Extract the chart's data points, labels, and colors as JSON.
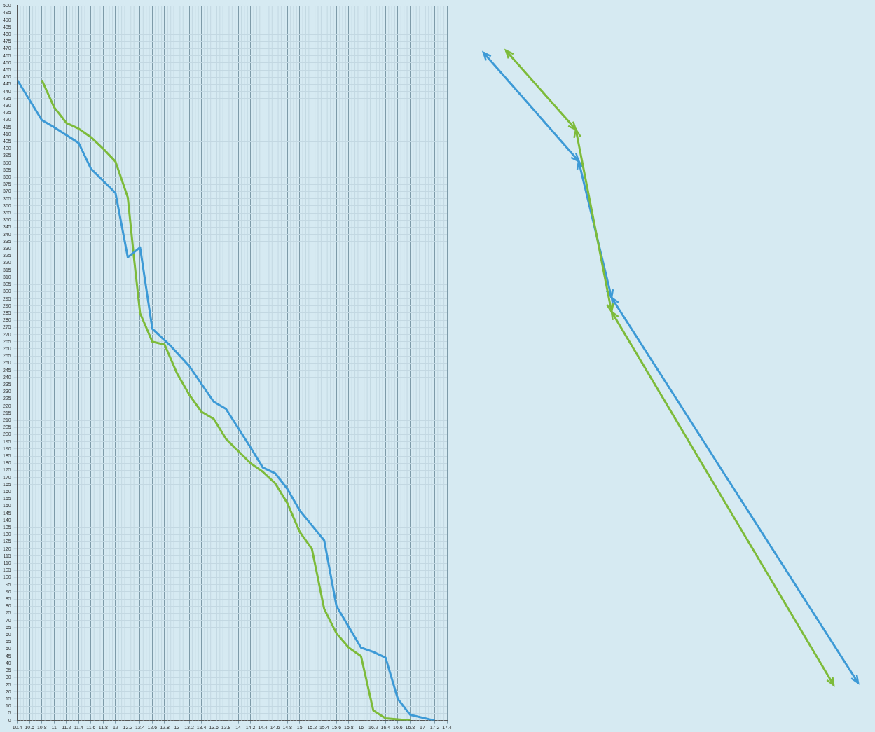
{
  "chart_data": {
    "type": "line",
    "grid": true,
    "xlim": [
      10.4,
      17.4
    ],
    "xticks": [
      10.4,
      10.6,
      10.8,
      11,
      11.2,
      11.4,
      11.6,
      11.8,
      12,
      12.2,
      12.4,
      12.6,
      12.8,
      13,
      13.2,
      13.4,
      13.6,
      13.8,
      14,
      14.2,
      14.4,
      14.6,
      14.8,
      15,
      15.2,
      15.4,
      15.6,
      15.8,
      16,
      16.2,
      16.4,
      16.6,
      16.8,
      17,
      17.2,
      17.4
    ],
    "ylim": [
      0,
      500
    ],
    "yticks": [
      0,
      5,
      10,
      15,
      20,
      25,
      30,
      35,
      40,
      45,
      50,
      55,
      60,
      65,
      70,
      75,
      80,
      85,
      90,
      95,
      100,
      105,
      110,
      115,
      120,
      125,
      130,
      135,
      140,
      145,
      150,
      155,
      160,
      165,
      170,
      175,
      180,
      185,
      190,
      195,
      200,
      205,
      210,
      215,
      220,
      225,
      230,
      235,
      240,
      245,
      250,
      255,
      260,
      265,
      270,
      275,
      280,
      285,
      290,
      295,
      300,
      305,
      310,
      315,
      320,
      325,
      330,
      335,
      340,
      345,
      350,
      355,
      360,
      365,
      370,
      375,
      380,
      385,
      390,
      395,
      400,
      405,
      410,
      415,
      420,
      425,
      430,
      435,
      440,
      445,
      450,
      455,
      460,
      465,
      470,
      475,
      480,
      485,
      490,
      495,
      500
    ],
    "series": [
      {
        "color": "#3d9ad6",
        "x": [
          10.4,
          10.8,
          11,
          11.4,
          11.6,
          12,
          12.2,
          12.4,
          12.6,
          12.9,
          13.2,
          13.6,
          13.8,
          14.2,
          14.4,
          14.6,
          14.8,
          15,
          15.4,
          15.6,
          16,
          16.2,
          16.4,
          16.6,
          16.8,
          17.2
        ],
        "values": [
          448,
          420,
          415,
          404,
          386,
          369,
          324,
          331,
          274,
          262,
          248,
          223,
          218,
          191,
          177,
          173,
          162,
          147,
          126,
          80,
          51,
          48,
          44,
          15,
          4,
          0
        ]
      },
      {
        "color": "#7dbb3a",
        "x": [
          10.8,
          11,
          11.2,
          11.4,
          11.6,
          11.8,
          12,
          12.2,
          12.3,
          12.4,
          12.6,
          12.8,
          13,
          13.2,
          13.4,
          13.6,
          13.8,
          14.2,
          14.4,
          14.6,
          14.8,
          15,
          15.2,
          15.4,
          15.6,
          15.8,
          16,
          16.2,
          16.4,
          16.8
        ],
        "values": [
          448,
          429,
          418,
          414,
          408,
          400,
          391,
          366,
          324,
          285,
          265,
          263,
          243,
          228,
          216,
          211,
          197,
          180,
          174,
          166,
          152,
          132,
          120,
          78,
          61,
          51,
          45,
          7,
          1.5,
          0
        ]
      }
    ]
  }
}
